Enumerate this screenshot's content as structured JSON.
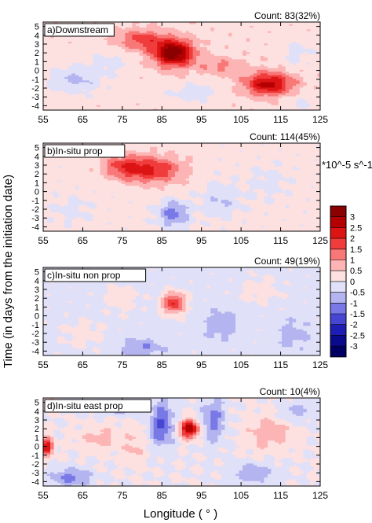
{
  "figure": {
    "y_axis_label": "Time (in days from the initiation date)",
    "x_axis_label": "Longitude ( ° )",
    "colorbar_unit": "*10^-5 s^-1"
  },
  "chart_data": [
    {
      "type": "heatmap",
      "panel": "a",
      "title": "a)Downstream",
      "count_label": "Count: 83(32%)",
      "xlim": [
        55,
        125
      ],
      "ylim": [
        -4.5,
        5.5
      ],
      "xticks": [
        55,
        65,
        75,
        85,
        95,
        105,
        115,
        125
      ],
      "yticks": [
        5,
        4,
        3,
        2,
        1,
        0,
        -1,
        -2,
        -3,
        -4
      ],
      "background_value": 0.3,
      "features": [
        {
          "lon": 88,
          "day": 2,
          "value": 3.2,
          "lon_width": 5,
          "day_width": 1.5
        },
        {
          "lon": 80,
          "day": 3.5,
          "value": 1.4,
          "lon_width": 6,
          "day_width": 1.2
        },
        {
          "lon": 100,
          "day": 0.5,
          "value": 0.8,
          "lon_width": 6,
          "day_width": 1.0
        },
        {
          "lon": 112,
          "day": -1.5,
          "value": 2.4,
          "lon_width": 6,
          "day_width": 1.3
        },
        {
          "lon": 63,
          "day": -1,
          "value": -0.9,
          "lon_width": 7,
          "day_width": 1.5
        },
        {
          "lon": 72,
          "day": 1,
          "value": -0.5,
          "lon_width": 5,
          "day_width": 1.2
        },
        {
          "lon": 93,
          "day": -2.5,
          "value": -0.6,
          "lon_width": 6,
          "day_width": 1.0
        },
        {
          "lon": 119,
          "day": 2,
          "value": -0.5,
          "lon_width": 4,
          "day_width": 1.5
        },
        {
          "lon": 120,
          "day": -3.5,
          "value": -0.4,
          "lon_width": 4,
          "day_width": 1.0
        }
      ]
    },
    {
      "type": "heatmap",
      "panel": "b",
      "title": "b)In-situ prop",
      "count_label": "Count: 114(45%)",
      "xlim": [
        55,
        125
      ],
      "ylim": [
        -4.5,
        5.5
      ],
      "xticks": [
        55,
        65,
        75,
        85,
        95,
        105,
        115,
        125
      ],
      "yticks": [
        5,
        4,
        3,
        2,
        1,
        0,
        -1,
        -2,
        -3,
        -4
      ],
      "background_value": 0.2,
      "features": [
        {
          "lon": 82,
          "day": 2.5,
          "value": 1.9,
          "lon_width": 8,
          "day_width": 1.5
        },
        {
          "lon": 75,
          "day": 3,
          "value": 1.0,
          "lon_width": 5,
          "day_width": 1.2
        },
        {
          "lon": 88,
          "day": -2.5,
          "value": -1.4,
          "lon_width": 4,
          "day_width": 1.5
        },
        {
          "lon": 100,
          "day": -1,
          "value": -0.7,
          "lon_width": 5,
          "day_width": 2.0
        },
        {
          "lon": 112,
          "day": 1,
          "value": -0.4,
          "lon_width": 5,
          "day_width": 2.0
        },
        {
          "lon": 62,
          "day": -2,
          "value": -0.4,
          "lon_width": 5,
          "day_width": 1.5
        }
      ]
    },
    {
      "type": "heatmap",
      "panel": "c",
      "title": "c)In-situ non prop",
      "count_label": "Count: 49(19%)",
      "xlim": [
        55,
        125
      ],
      "ylim": [
        -4.5,
        5.5
      ],
      "xticks": [
        55,
        65,
        75,
        85,
        95,
        105,
        115,
        125
      ],
      "yticks": [
        5,
        4,
        3,
        2,
        1,
        0,
        -1,
        -2,
        -3,
        -4
      ],
      "background_value": -0.2,
      "features": [
        {
          "lon": 88,
          "day": 1.5,
          "value": 2.2,
          "lon_width": 3,
          "day_width": 1.2
        },
        {
          "lon": 75,
          "day": 2,
          "value": 0.6,
          "lon_width": 4,
          "day_width": 1.5
        },
        {
          "lon": 110,
          "day": 3,
          "value": 0.5,
          "lon_width": 5,
          "day_width": 1.5
        },
        {
          "lon": 65,
          "day": -2,
          "value": 0.5,
          "lon_width": 5,
          "day_width": 1.5
        },
        {
          "lon": 80,
          "day": -3.5,
          "value": -0.8,
          "lon_width": 5,
          "day_width": 1.0
        },
        {
          "lon": 100,
          "day": -1,
          "value": -0.7,
          "lon_width": 4,
          "day_width": 1.5
        },
        {
          "lon": 118,
          "day": -2,
          "value": -0.6,
          "lon_width": 4,
          "day_width": 1.5
        }
      ]
    },
    {
      "type": "heatmap",
      "panel": "d",
      "title": "d)In-situ east prop",
      "count_label": "Count: 10(4%)",
      "xlim": [
        55,
        125
      ],
      "ylim": [
        -4.5,
        5.5
      ],
      "xticks": [
        55,
        65,
        75,
        85,
        95,
        105,
        115,
        125
      ],
      "yticks": [
        5,
        4,
        3,
        2,
        1,
        0,
        -1,
        -2,
        -3,
        -4
      ],
      "background_value": 0.0,
      "features": [
        {
          "lon": 92,
          "day": 2,
          "value": 3.0,
          "lon_width": 2.5,
          "day_width": 1.0
        },
        {
          "lon": 56,
          "day": 0,
          "value": 2.5,
          "lon_width": 1.5,
          "day_width": 1.0
        },
        {
          "lon": 57,
          "day": 4.8,
          "value": 2.0,
          "lon_width": 1.5,
          "day_width": 0.5
        },
        {
          "lon": 112,
          "day": 1.5,
          "value": 0.8,
          "lon_width": 6,
          "day_width": 2.0
        },
        {
          "lon": 69,
          "day": 1,
          "value": 0.7,
          "lon_width": 5,
          "day_width": 1.5
        },
        {
          "lon": 78,
          "day": 0,
          "value": 0.6,
          "lon_width": 3,
          "day_width": 2.0
        },
        {
          "lon": 85,
          "day": 2.5,
          "value": -1.6,
          "lon_width": 3,
          "day_width": 2.5
        },
        {
          "lon": 98,
          "day": 3,
          "value": -1.2,
          "lon_width": 3,
          "day_width": 2.5
        },
        {
          "lon": 73,
          "day": 4.5,
          "value": -1.0,
          "lon_width": 6,
          "day_width": 0.8
        },
        {
          "lon": 62,
          "day": -3.5,
          "value": -1.2,
          "lon_width": 5,
          "day_width": 1.0
        },
        {
          "lon": 108,
          "day": -3,
          "value": -0.8,
          "lon_width": 6,
          "day_width": 1.2
        },
        {
          "lon": 119,
          "day": 4,
          "value": -0.7,
          "lon_width": 4,
          "day_width": 1.2
        }
      ]
    }
  ],
  "colorbar": {
    "tick_labels": [
      "3",
      "2.5",
      "2",
      "1.5",
      "1",
      "0.5",
      "0",
      "-0.5",
      "-1",
      "-1.5",
      "-2",
      "-2.5",
      "-3"
    ],
    "colors": [
      "#8b0000",
      "#b40000",
      "#dc1414",
      "#f03c3c",
      "#f87878",
      "#fcb4b4",
      "#fde0e0",
      "#e0e0f8",
      "#b4b4f0",
      "#7878e6",
      "#4646d2",
      "#1e1eb4",
      "#0a0a8c",
      "#000064"
    ]
  }
}
